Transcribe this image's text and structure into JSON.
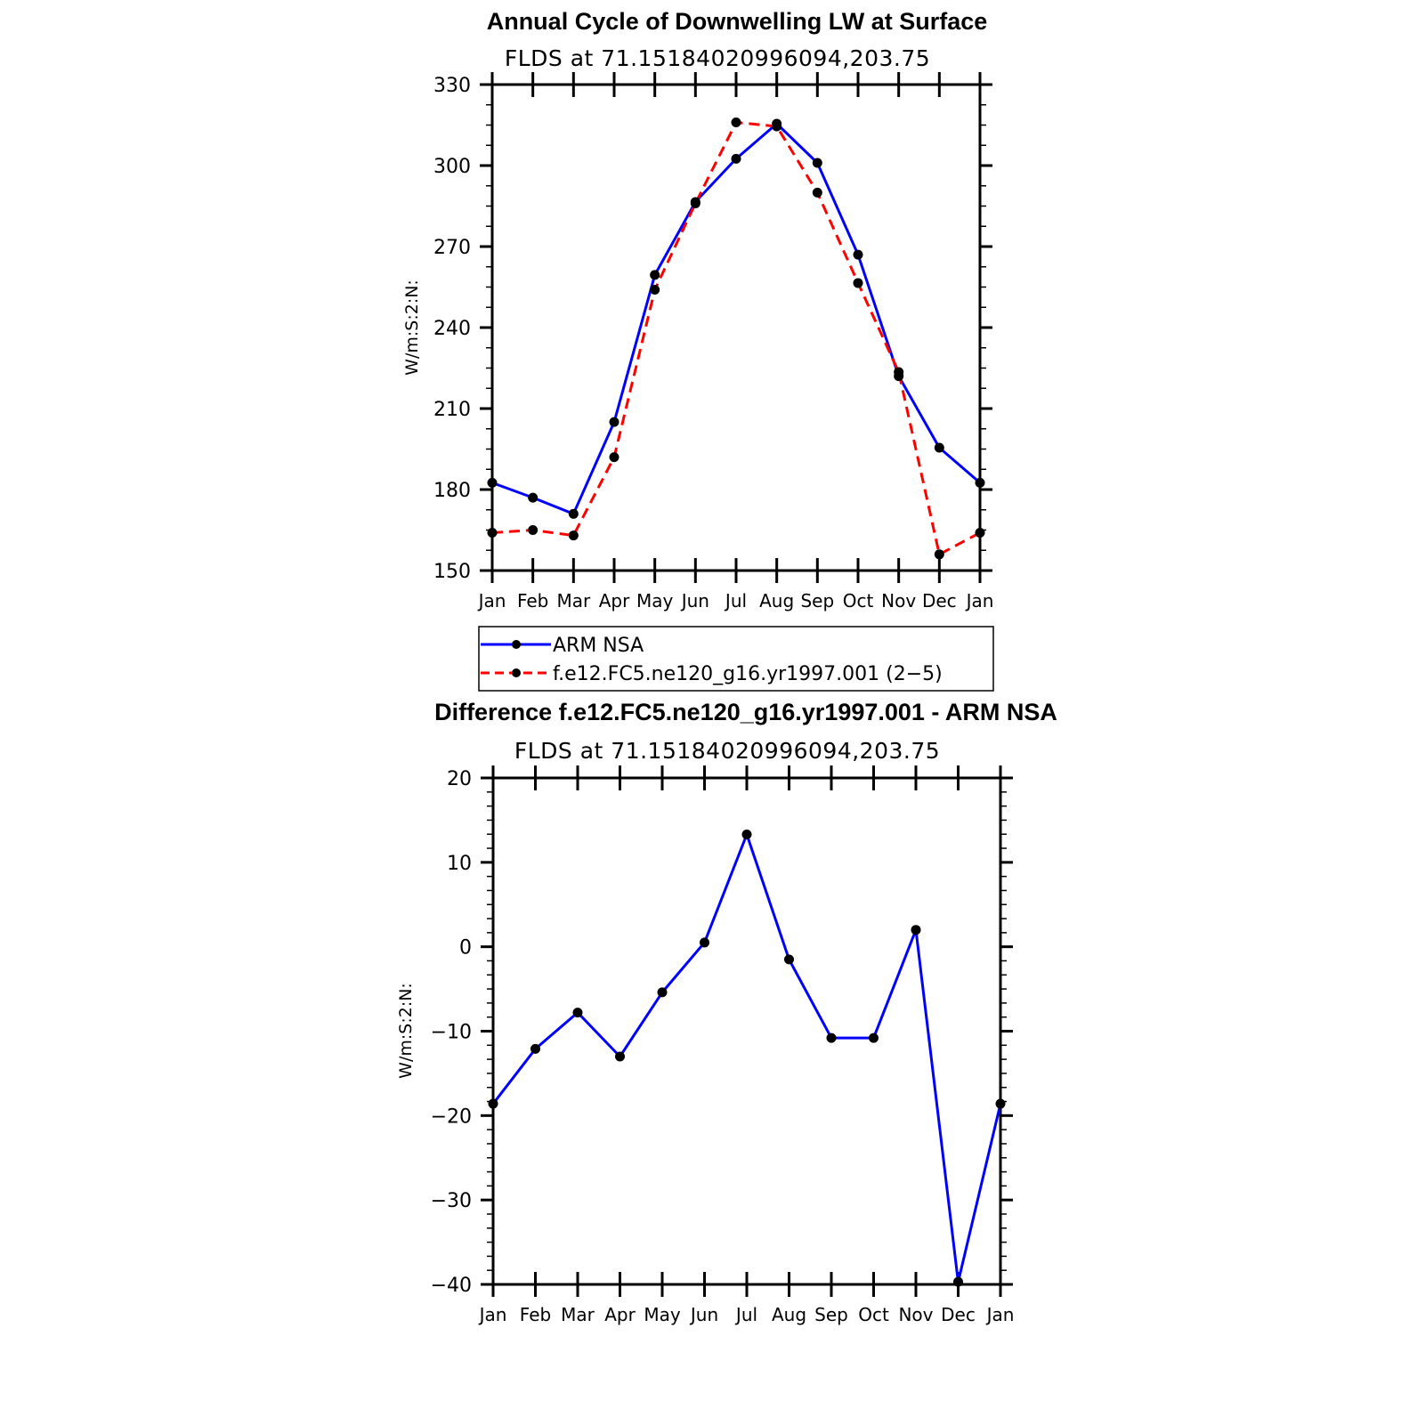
{
  "chart_data": [
    {
      "type": "line",
      "title": "Annual Cycle of Downwelling LW at Surface",
      "subtitle": "FLDS at 71.15184020996094,203.75",
      "ylabel": "W/m:S:2:N:",
      "xlabel": "",
      "ylim": [
        150,
        330
      ],
      "yticks": [
        150,
        180,
        210,
        240,
        270,
        300,
        330
      ],
      "categories": [
        "Jan",
        "Feb",
        "Mar",
        "Apr",
        "May",
        "Jun",
        "Jul",
        "Aug",
        "Sep",
        "Oct",
        "Nov",
        "Dec",
        "Jan"
      ],
      "legend_position": "below",
      "series": [
        {
          "name": "ARM NSA",
          "color": "#0000ff",
          "dash": "solid",
          "values": [
            182.5,
            177,
            171,
            205,
            259.5,
            286.5,
            302.5,
            315.5,
            301,
            267,
            222,
            195.5,
            182.5
          ]
        },
        {
          "name": "f.e12.FC5.ne120_g16.yr1997.001 (2−5)",
          "color": "#ff0000",
          "dash": "dashed",
          "values": [
            164,
            165,
            163,
            192,
            254,
            286,
            316,
            314.5,
            290,
            256.5,
            223.5,
            156,
            164
          ]
        }
      ]
    },
    {
      "type": "line",
      "title": "Difference f.e12.FC5.ne120_g16.yr1997.001 - ARM NSA",
      "subtitle": "FLDS at 71.15184020996094,203.75",
      "ylabel": "W/m:S:2:N:",
      "xlabel": "",
      "ylim": [
        -40,
        20
      ],
      "yticks": [
        -40,
        -30,
        -20,
        -10,
        0,
        10,
        20
      ],
      "ytick_labels": [
        "−40",
        "−30",
        "−20",
        "−10",
        "0",
        "10",
        "20"
      ],
      "categories": [
        "Jan",
        "Feb",
        "Mar",
        "Apr",
        "May",
        "Jun",
        "Jul",
        "Aug",
        "Sep",
        "Oct",
        "Nov",
        "Dec",
        "Jan"
      ],
      "series": [
        {
          "name": "Difference",
          "color": "#0000ff",
          "dash": "solid",
          "values": [
            -18.6,
            -12.1,
            -7.8,
            -13,
            -5.4,
            0.5,
            13.3,
            -1.5,
            -10.8,
            -10.8,
            2,
            -39.7,
            -18.6
          ]
        }
      ]
    }
  ]
}
